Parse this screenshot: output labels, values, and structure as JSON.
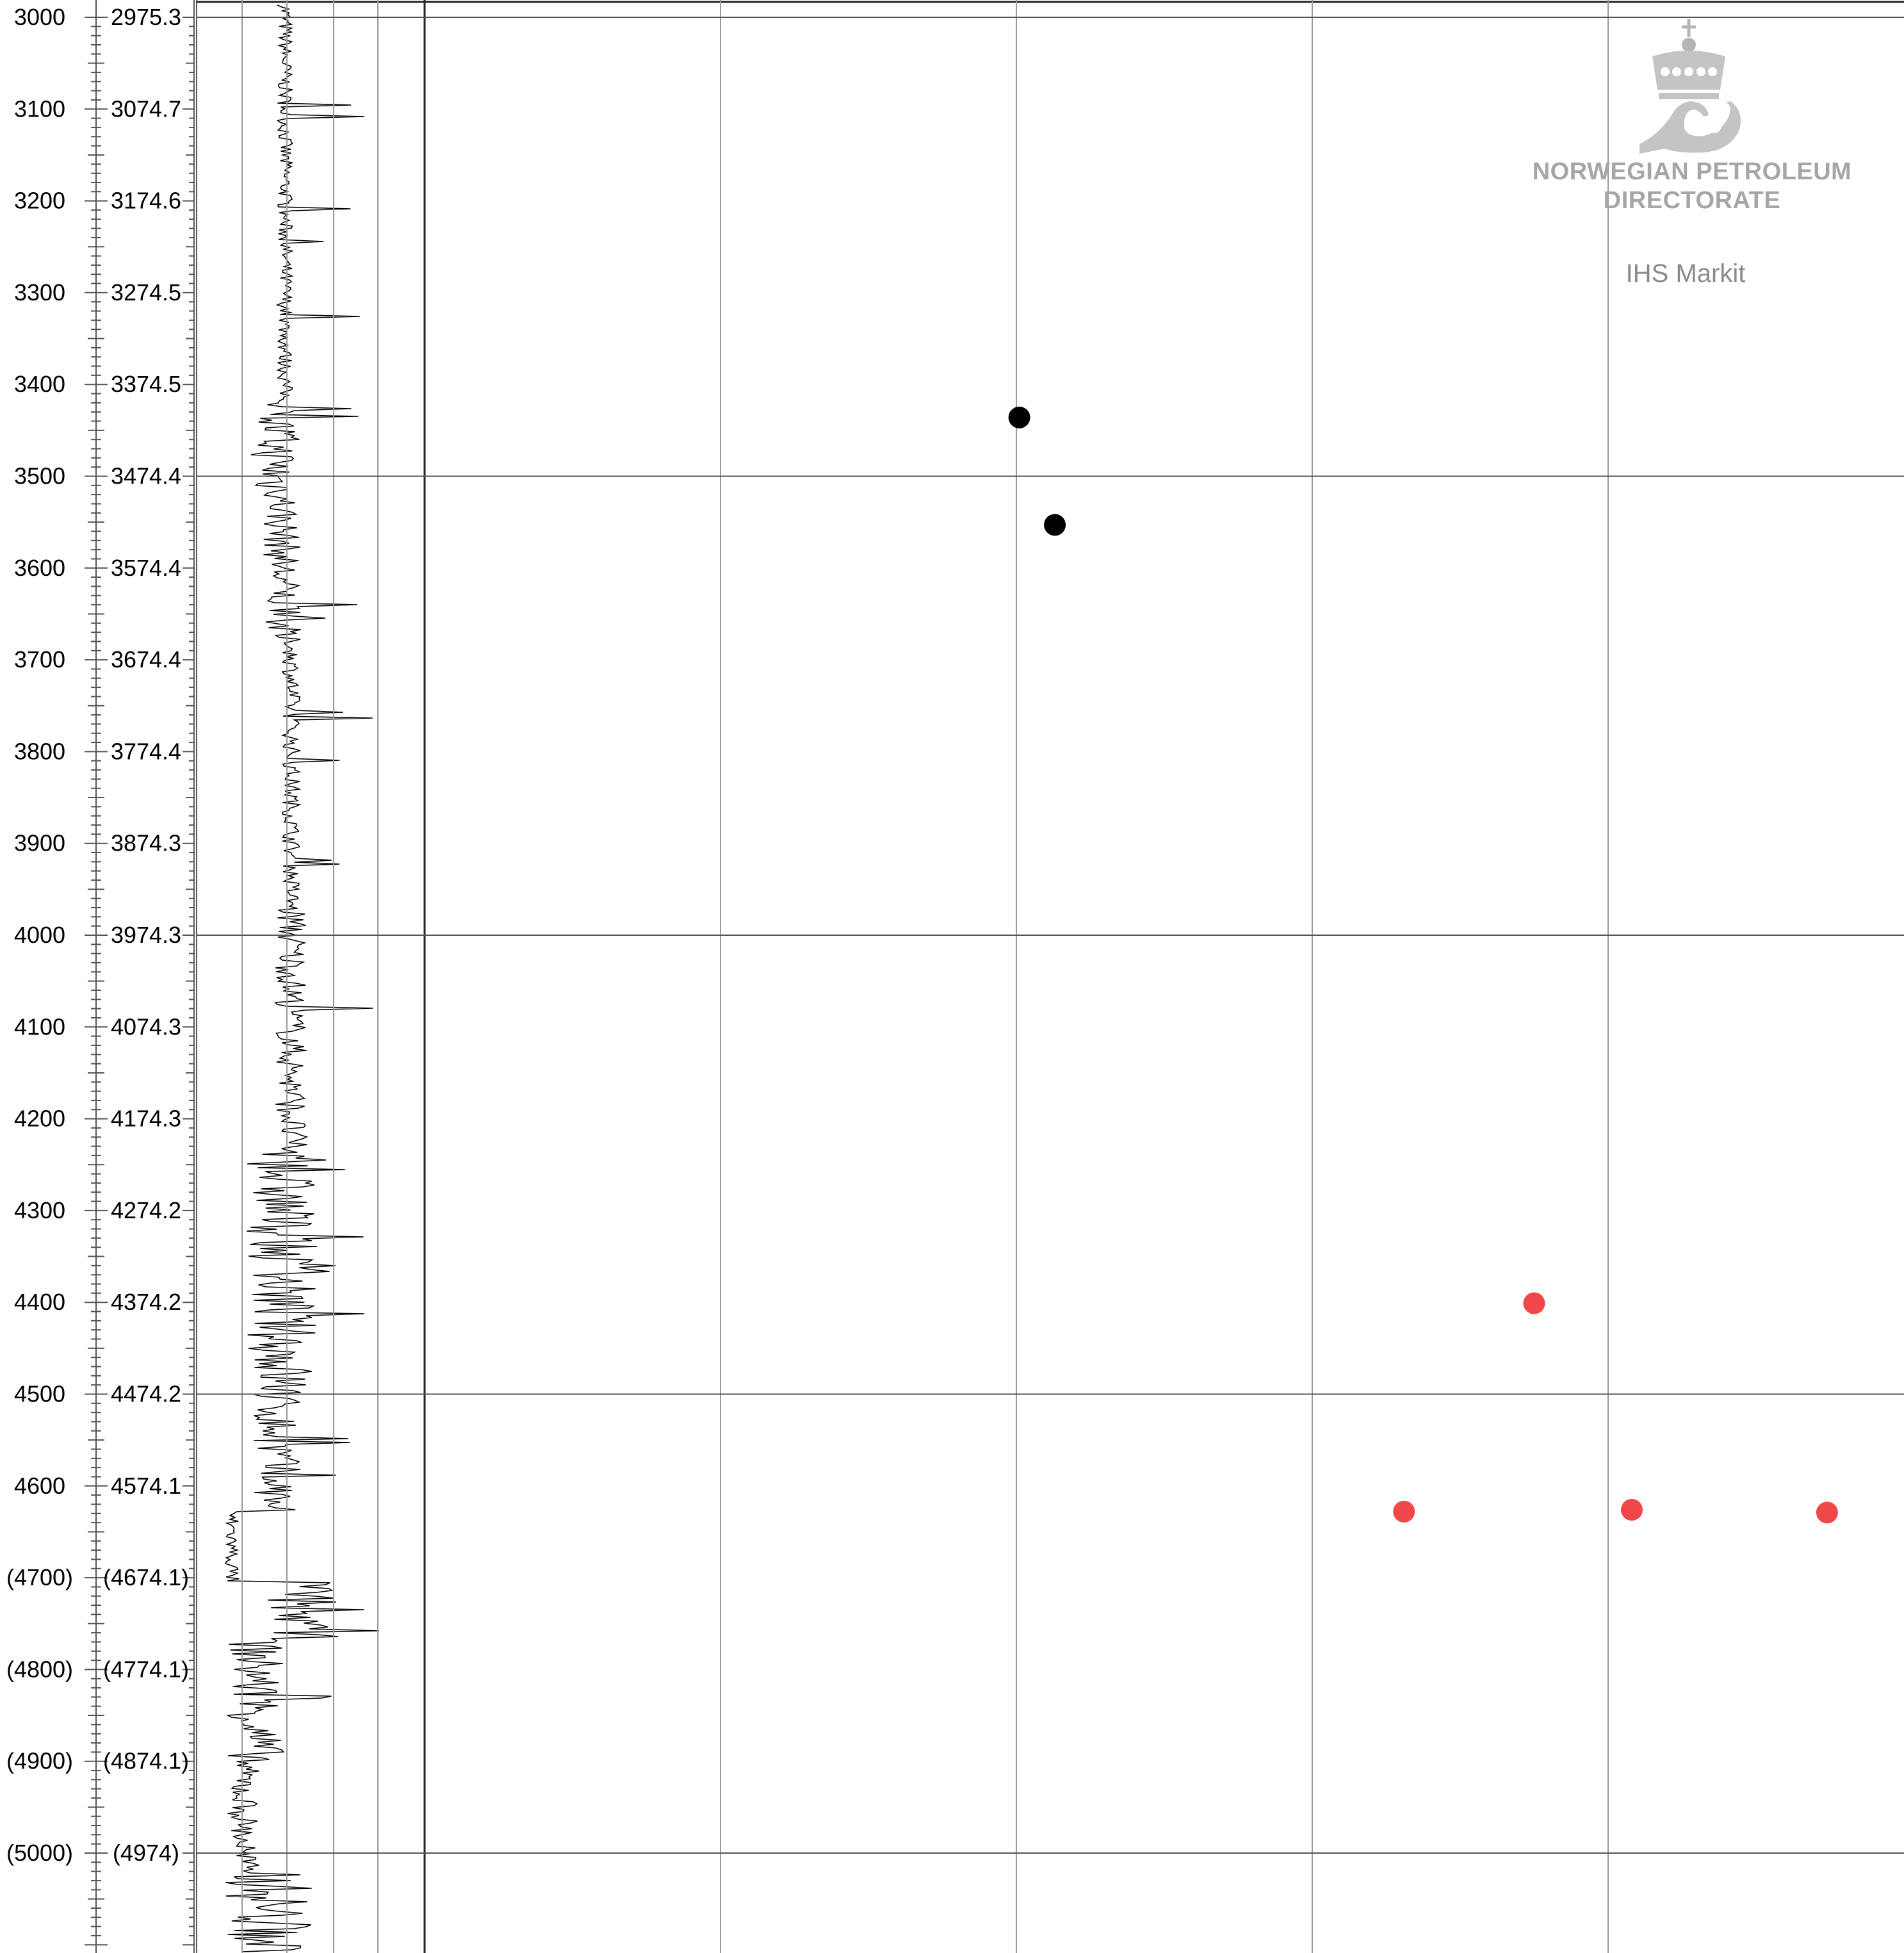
{
  "chart_data": {
    "type": "scatter",
    "title": "",
    "xlabel": "",
    "ylabel": "",
    "y_axis_direction": "down",
    "ylim": [
      3000,
      5100
    ],
    "md_tick_labels": [
      "3000",
      "3100",
      "3200",
      "3300",
      "3400",
      "3500",
      "3600",
      "3700",
      "3800",
      "3900",
      "4000",
      "4100",
      "4200",
      "4300",
      "4400",
      "4500",
      "4600",
      "(4700)",
      "(4800)",
      "(4900)",
      "(5000)"
    ],
    "tvd_tick_labels": [
      "2975.3",
      "3074.7",
      "3174.6",
      "3274.5",
      "3374.5",
      "3474.4",
      "3574.4",
      "3674.4",
      "3774.4",
      "3874.3",
      "3974.3",
      "4074.3",
      "4174.3",
      "4274.2",
      "4374.2",
      "4474.2",
      "4574.1",
      "(4674.1)",
      "(4774.1)",
      "(4874.1)",
      "(4974)"
    ],
    "x_gridlines": 5,
    "grid": true,
    "series": [
      {
        "color": "#000000",
        "points": [
          {
            "x": 2.01,
            "y": 3436
          },
          {
            "x": 2.13,
            "y": 3553
          }
        ]
      },
      {
        "color": "#f04848",
        "points": [
          {
            "x": 3.75,
            "y": 4401
          },
          {
            "x": 3.31,
            "y": 4628
          },
          {
            "x": 4.08,
            "y": 4626
          },
          {
            "x": 4.74,
            "y": 4629
          }
        ]
      }
    ],
    "annotations": {
      "logo_text_line1": "NORWEGIAN PETROLEUM",
      "logo_text_line2": "DIRECTORATE",
      "secondary_logo": "IHS Markit"
    },
    "log_track": {
      "description": "well log curve in left track",
      "color": "#000000"
    }
  }
}
